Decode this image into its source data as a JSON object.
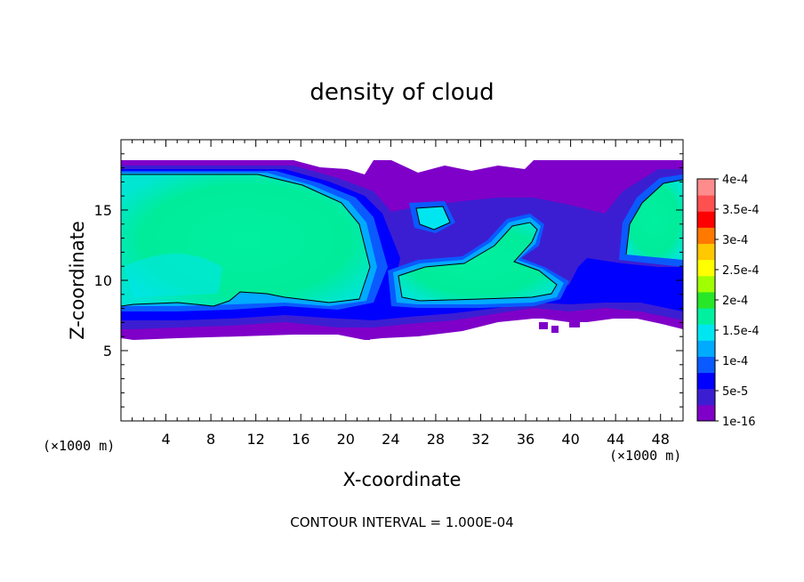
{
  "chart_data": {
    "type": "heatmap",
    "title": "density of cloud",
    "xlabel": "X-coordinate",
    "ylabel": "Z-coordinate",
    "x_unit_label": "(×1000 m)",
    "y_unit_label": "(×1000 m)",
    "xlim": [
      0,
      50
    ],
    "ylim": [
      0,
      20
    ],
    "x_ticks": [
      4,
      8,
      12,
      16,
      20,
      24,
      28,
      32,
      36,
      40,
      44,
      48
    ],
    "y_ticks": [
      5,
      10,
      15
    ],
    "footer": "CONTOUR INTERVAL = 1.000E-04",
    "colorbar": {
      "labels": [
        "1e-16",
        "5e-5",
        "1e-4",
        "1.5e-4",
        "2e-4",
        "2.5e-4",
        "3e-4",
        "3.5e-4",
        "4e-4"
      ],
      "colors": [
        "#7f00c8",
        "#3c1ed2",
        "#0000ff",
        "#0a5aff",
        "#00aaff",
        "#00e6f0",
        "#00f0a0",
        "#28e628",
        "#a0ff00",
        "#ffff00",
        "#ffc800",
        "#ff7800",
        "#ff0000",
        "#ff5050",
        "#ff8c8c"
      ]
    },
    "regions": {
      "cloud_base": 6.5,
      "cloud_top": 18.5,
      "core_left_x": [
        0,
        22
      ],
      "core_left_z": [
        8.3,
        17.5
      ],
      "core_mid_x": [
        23,
        36
      ],
      "core_mid_z": [
        7.8,
        14.5
      ],
      "core_right_x": [
        44,
        50
      ],
      "core_right_z": [
        11,
        17.5
      ],
      "core_value": 0.00016
    }
  }
}
